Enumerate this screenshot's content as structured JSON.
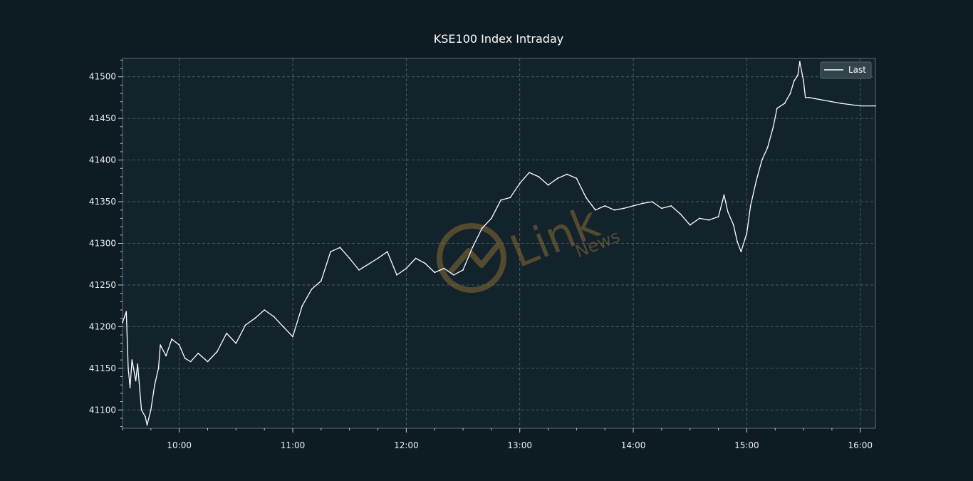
{
  "chart_data": {
    "type": "line",
    "title": "KSE100 Index Intraday",
    "xlabel": "",
    "ylabel": "",
    "x_ticks": [
      "10:00",
      "11:00",
      "12:00",
      "13:00",
      "14:00",
      "15:00",
      "16:00"
    ],
    "y_ticks": [
      "41100",
      "41150",
      "41200",
      "41250",
      "41300",
      "41350",
      "41400",
      "41450",
      "41500"
    ],
    "xlim": [
      "09:30",
      "16:08"
    ],
    "ylim": [
      41078,
      41522
    ],
    "grid": true,
    "legend": {
      "position": "top-right",
      "entries": [
        "Last"
      ]
    },
    "colors": {
      "background": "#0d1b22",
      "plot_area": "#13232b",
      "line": "#ffffff",
      "grid": "#5a6a70",
      "watermark": "#8a6a35"
    },
    "series": [
      {
        "name": "Last",
        "points": [
          [
            "09:30",
            41205
          ],
          [
            "09:32",
            41218
          ],
          [
            "09:33",
            41150
          ],
          [
            "09:34",
            41127
          ],
          [
            "09:35",
            41160
          ],
          [
            "09:37",
            41135
          ],
          [
            "09:38",
            41155
          ],
          [
            "09:40",
            41100
          ],
          [
            "09:42",
            41092
          ],
          [
            "09:43",
            41082
          ],
          [
            "09:45",
            41100
          ],
          [
            "09:47",
            41130
          ],
          [
            "09:49",
            41150
          ],
          [
            "09:50",
            41178
          ],
          [
            "09:53",
            41165
          ],
          [
            "09:56",
            41185
          ],
          [
            "10:00",
            41178
          ],
          [
            "10:03",
            41162
          ],
          [
            "10:06",
            41158
          ],
          [
            "10:10",
            41168
          ],
          [
            "10:15",
            41158
          ],
          [
            "10:20",
            41170
          ],
          [
            "10:25",
            41192
          ],
          [
            "10:30",
            41180
          ],
          [
            "10:35",
            41202
          ],
          [
            "10:40",
            41210
          ],
          [
            "10:45",
            41220
          ],
          [
            "10:50",
            41212
          ],
          [
            "10:55",
            41200
          ],
          [
            "11:00",
            41188
          ],
          [
            "11:05",
            41225
          ],
          [
            "11:10",
            41245
          ],
          [
            "11:15",
            41255
          ],
          [
            "11:20",
            41290
          ],
          [
            "11:25",
            41295
          ],
          [
            "11:30",
            41282
          ],
          [
            "11:35",
            41268
          ],
          [
            "11:40",
            41275
          ],
          [
            "11:45",
            41282
          ],
          [
            "11:50",
            41290
          ],
          [
            "11:55",
            41262
          ],
          [
            "12:00",
            41270
          ],
          [
            "12:05",
            41282
          ],
          [
            "12:10",
            41276
          ],
          [
            "12:15",
            41265
          ],
          [
            "12:20",
            41270
          ],
          [
            "12:25",
            41262
          ],
          [
            "12:30",
            41268
          ],
          [
            "12:35",
            41295
          ],
          [
            "12:40",
            41318
          ],
          [
            "12:45",
            41330
          ],
          [
            "12:50",
            41352
          ],
          [
            "12:55",
            41355
          ],
          [
            "13:00",
            41372
          ],
          [
            "13:05",
            41385
          ],
          [
            "13:10",
            41380
          ],
          [
            "13:15",
            41370
          ],
          [
            "13:20",
            41378
          ],
          [
            "13:25",
            41383
          ],
          [
            "13:30",
            41378
          ],
          [
            "13:35",
            41355
          ],
          [
            "13:40",
            41340
          ],
          [
            "13:45",
            41345
          ],
          [
            "13:50",
            41340
          ],
          [
            "13:55",
            41342
          ],
          [
            "14:00",
            41345
          ],
          [
            "14:05",
            41348
          ],
          [
            "14:10",
            41350
          ],
          [
            "14:15",
            41342
          ],
          [
            "14:20",
            41345
          ],
          [
            "14:25",
            41335
          ],
          [
            "14:30",
            41322
          ],
          [
            "14:35",
            41330
          ],
          [
            "14:40",
            41328
          ],
          [
            "14:45",
            41332
          ],
          [
            "14:48",
            41358
          ],
          [
            "14:50",
            41338
          ],
          [
            "14:53",
            41322
          ],
          [
            "14:55",
            41302
          ],
          [
            "14:57",
            41290
          ],
          [
            "14:59",
            41305
          ],
          [
            "15:00",
            41312
          ],
          [
            "15:02",
            41345
          ],
          [
            "15:05",
            41375
          ],
          [
            "15:08",
            41400
          ],
          [
            "15:11",
            41415
          ],
          [
            "15:14",
            41440
          ],
          [
            "15:16",
            41462
          ],
          [
            "15:20",
            41468
          ],
          [
            "15:23",
            41480
          ],
          [
            "15:25",
            41495
          ],
          [
            "15:27",
            41502
          ],
          [
            "15:28",
            41518
          ],
          [
            "15:30",
            41495
          ],
          [
            "15:31",
            41475
          ],
          [
            "15:33",
            41475
          ],
          [
            "15:40",
            41472
          ],
          [
            "15:50",
            41468
          ],
          [
            "16:00",
            41465
          ],
          [
            "16:08",
            41465
          ]
        ]
      }
    ]
  },
  "watermark": {
    "brand": "Link",
    "sub": "News"
  }
}
